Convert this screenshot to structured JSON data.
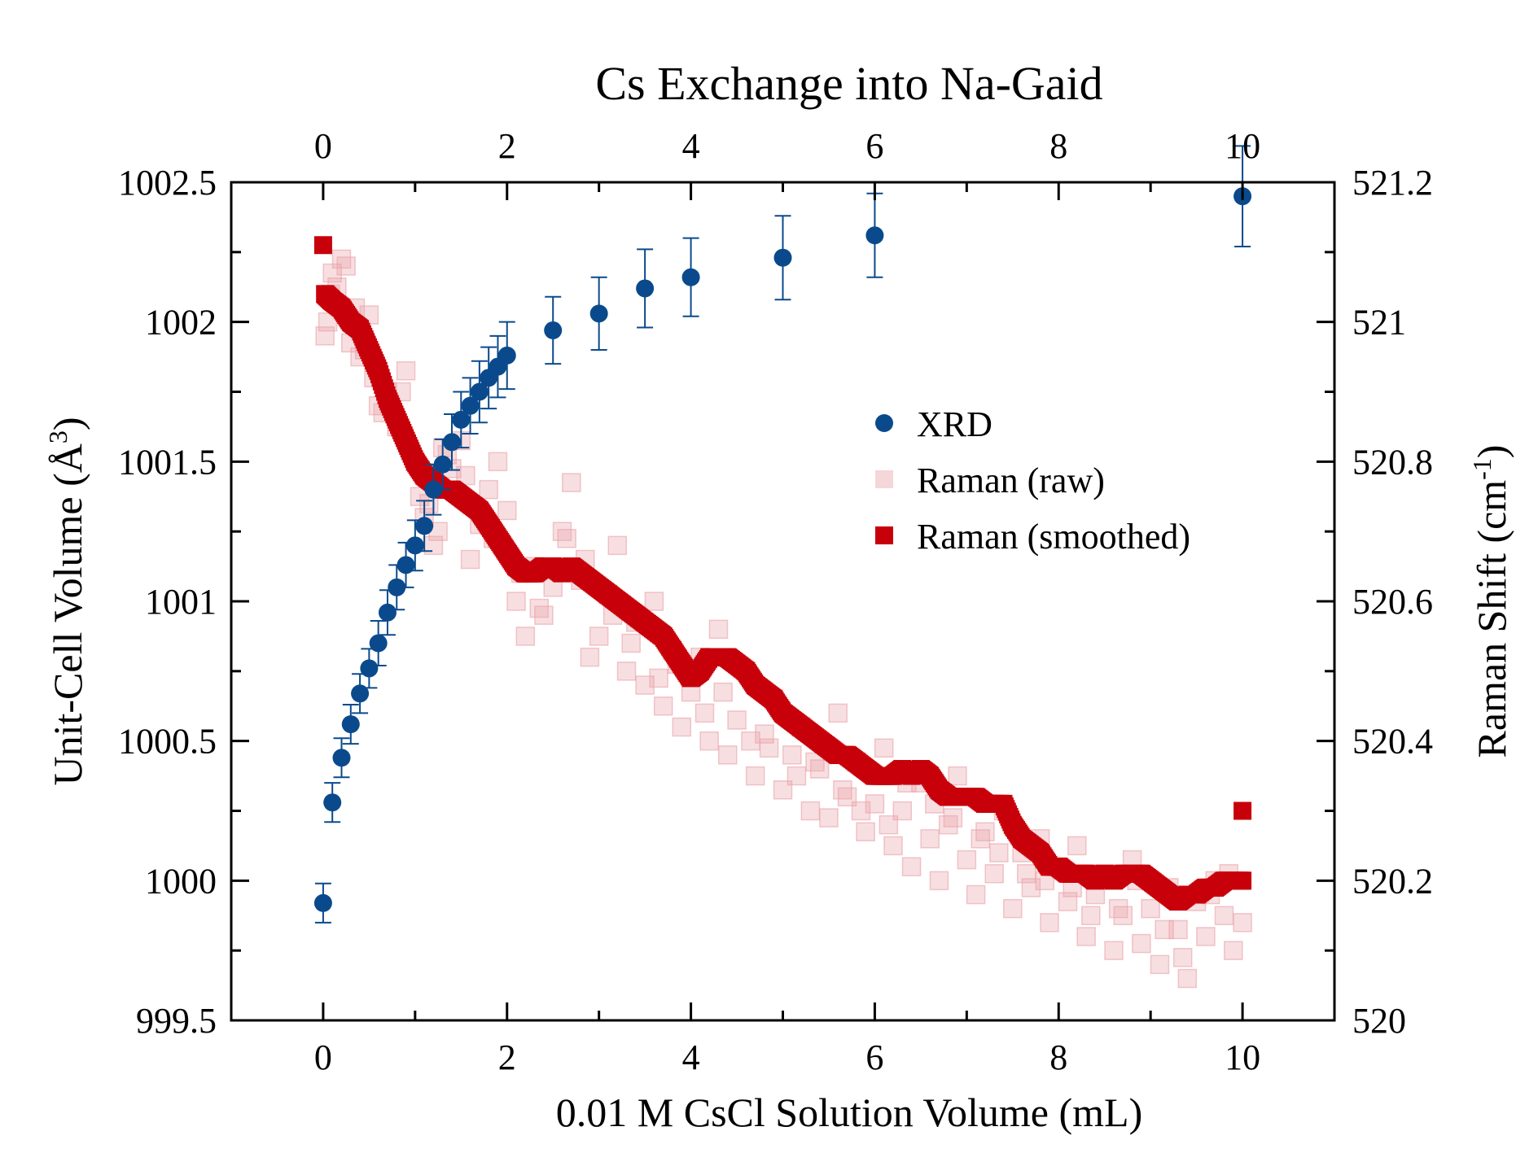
{
  "colors": {
    "xrd": "#0a4a8c",
    "raman_raw": "#e9a3aa",
    "raman_smoothed": "#c8000a"
  },
  "chart_data": {
    "type": "scatter",
    "title": "Cs Exchange into Na-Gaid",
    "xlabel": "0.01 M CsCl Solution Volume (mL)",
    "ylabel_left_text": "Unit-Cell Volume (Å",
    "ylabel_left_sup": "3",
    "ylabel_left_end": ")",
    "ylabel_right_text": "Raman Shift (cm",
    "ylabel_right_sup": "-1",
    "ylabel_right_end": ")",
    "xlim": [
      -1,
      11
    ],
    "ylim_left": [
      999.5,
      1002.5
    ],
    "ylim_right": [
      520,
      521.2
    ],
    "x_ticks": [
      0,
      2,
      4,
      6,
      8,
      10
    ],
    "x_tick_labels": [
      "0",
      "2",
      "4",
      "6",
      "8",
      "10"
    ],
    "x_ticks_top": [
      0,
      2,
      4,
      6,
      8,
      10
    ],
    "x_tick_labels_top": [
      "0",
      "2",
      "4",
      "6",
      "8",
      "10"
    ],
    "y_left_ticks": [
      999.5,
      1000,
      1000.5,
      1001,
      1001.5,
      1002,
      1002.5
    ],
    "y_left_tick_labels": [
      "999.5",
      "1000",
      "1000.5",
      "1001",
      "1001.5",
      "1002",
      "1002.5"
    ],
    "y_right_ticks": [
      520,
      520.2,
      520.4,
      520.6,
      520.8,
      521,
      521.2
    ],
    "y_right_tick_labels": [
      "520",
      "520.2",
      "520.4",
      "520.6",
      "520.8",
      "521",
      "521.2"
    ],
    "legend_position": "center-right",
    "legend": [
      "XRD",
      "Raman (raw)",
      "Raman (smoothed)"
    ],
    "series": [
      {
        "name": "XRD",
        "axis": "left",
        "marker": "circle",
        "x": [
          0,
          0.1,
          0.2,
          0.3,
          0.4,
          0.5,
          0.6,
          0.7,
          0.8,
          0.9,
          1.0,
          1.1,
          1.2,
          1.3,
          1.4,
          1.5,
          1.6,
          1.7,
          1.8,
          1.9,
          2.0,
          2.5,
          3.0,
          3.5,
          4.0,
          5.0,
          6.0,
          10.0
        ],
        "y": [
          999.92,
          1000.28,
          1000.44,
          1000.56,
          1000.67,
          1000.76,
          1000.85,
          1000.96,
          1001.05,
          1001.13,
          1001.2,
          1001.27,
          1001.4,
          1001.49,
          1001.57,
          1001.65,
          1001.7,
          1001.75,
          1001.8,
          1001.84,
          1001.88,
          1001.97,
          1002.03,
          1002.12,
          1002.16,
          1002.23,
          1002.31,
          1002.45
        ],
        "yerr": [
          0.07,
          0.07,
          0.07,
          0.07,
          0.07,
          0.07,
          0.08,
          0.08,
          0.08,
          0.08,
          0.09,
          0.09,
          0.09,
          0.09,
          0.1,
          0.1,
          0.1,
          0.11,
          0.11,
          0.11,
          0.12,
          0.12,
          0.13,
          0.14,
          0.14,
          0.15,
          0.15,
          0.18
        ]
      },
      {
        "name": "Raman (raw)",
        "axis": "right",
        "marker": "square",
        "x": [
          0.02,
          0.05,
          0.08,
          0.1,
          0.15,
          0.2,
          0.25,
          0.3,
          0.4,
          0.5,
          0.55,
          0.6,
          0.7,
          0.8,
          0.9,
          1.0,
          1.05,
          1.1,
          1.2,
          1.25,
          1.3,
          1.4,
          1.5,
          1.6,
          1.7,
          1.8,
          1.9,
          2.0,
          2.1,
          2.2,
          2.3,
          2.4,
          2.5,
          2.6,
          2.7,
          2.8,
          2.9,
          3.0,
          3.1,
          3.2,
          3.3,
          3.4,
          3.5,
          3.6,
          3.7,
          3.8,
          3.9,
          4.0,
          4.1,
          4.2,
          4.3,
          4.4,
          4.5,
          4.6,
          4.7,
          4.8,
          4.9,
          5.0,
          5.1,
          5.2,
          5.3,
          5.4,
          5.5,
          5.6,
          5.7,
          5.8,
          5.9,
          6.0,
          6.1,
          6.2,
          6.3,
          6.4,
          6.5,
          6.6,
          6.7,
          6.8,
          6.9,
          7.0,
          7.1,
          7.2,
          7.3,
          7.4,
          7.5,
          7.6,
          7.7,
          7.8,
          7.9,
          8.0,
          8.1,
          8.2,
          8.3,
          8.4,
          8.5,
          8.6,
          8.7,
          8.8,
          8.9,
          9.0,
          9.1,
          9.2,
          9.3,
          9.4,
          9.5,
          9.6,
          9.7,
          9.8,
          9.9,
          10.0,
          0.35,
          0.65,
          1.15,
          1.55,
          2.15,
          2.65,
          3.15,
          3.65,
          4.15,
          4.65,
          5.15,
          5.65,
          6.15,
          6.65,
          7.15,
          7.65,
          8.15,
          8.65,
          9.15,
          9.65,
          0.45,
          0.85,
          1.35,
          1.85,
          2.35,
          2.85,
          3.35,
          3.85,
          4.35,
          4.85,
          5.35,
          5.85,
          6.35,
          6.85,
          7.35,
          7.85,
          8.35,
          8.85,
          9.35,
          9.85
        ],
        "y": [
          520.98,
          521.0,
          521.04,
          521.07,
          521.05,
          521.09,
          521.08,
          520.97,
          520.95,
          521.01,
          520.92,
          520.88,
          520.9,
          520.85,
          520.93,
          520.8,
          520.75,
          520.72,
          520.68,
          520.7,
          520.82,
          520.79,
          520.83,
          520.66,
          520.71,
          520.76,
          520.8,
          520.73,
          520.6,
          520.55,
          520.65,
          520.58,
          520.62,
          520.7,
          520.77,
          520.63,
          520.52,
          520.55,
          520.61,
          520.68,
          520.5,
          520.57,
          520.48,
          520.6,
          520.45,
          520.53,
          520.42,
          520.47,
          520.52,
          520.4,
          520.56,
          520.38,
          520.43,
          520.5,
          520.35,
          520.41,
          520.46,
          520.33,
          520.38,
          520.42,
          520.3,
          520.36,
          520.29,
          520.44,
          520.32,
          520.37,
          520.27,
          520.31,
          520.39,
          520.25,
          520.3,
          520.22,
          520.34,
          520.26,
          520.2,
          520.28,
          520.35,
          520.23,
          520.18,
          520.27,
          520.21,
          520.3,
          520.16,
          520.24,
          520.19,
          520.26,
          520.14,
          520.22,
          520.17,
          520.25,
          520.12,
          520.18,
          520.21,
          520.1,
          520.15,
          520.23,
          520.11,
          520.16,
          520.08,
          520.19,
          520.13,
          520.06,
          520.17,
          520.12,
          520.2,
          520.15,
          520.1,
          520.14,
          521.02,
          520.87,
          520.74,
          520.78,
          520.64,
          520.69,
          520.58,
          520.49,
          520.44,
          520.4,
          520.35,
          520.33,
          520.28,
          520.31,
          520.26,
          520.21,
          520.19,
          520.16,
          520.13,
          520.18,
          520.96,
          520.9,
          520.81,
          520.69,
          520.59,
          520.66,
          520.54,
          520.51,
          520.47,
          520.39,
          520.37,
          520.3,
          520.34,
          520.29,
          520.24,
          520.2,
          520.15,
          520.2,
          520.09,
          520.21
        ]
      },
      {
        "name": "Raman (smoothed)",
        "axis": "right",
        "marker": "square",
        "x": [
          0.0,
          0.02,
          0.1,
          0.2,
          0.3,
          0.4,
          0.5,
          0.6,
          0.7,
          0.8,
          0.9,
          1.0,
          1.1,
          1.2,
          1.3,
          1.4,
          1.5,
          1.6,
          1.7,
          1.8,
          1.9,
          2.0,
          2.1,
          2.2,
          2.3,
          2.4,
          2.5,
          2.6,
          2.7,
          2.8,
          2.9,
          3.0,
          3.1,
          3.2,
          3.3,
          3.4,
          3.5,
          3.6,
          3.7,
          3.8,
          3.9,
          4.0,
          4.1,
          4.2,
          4.3,
          4.4,
          4.5,
          4.6,
          4.7,
          4.8,
          4.9,
          5.0,
          5.1,
          5.2,
          5.3,
          5.4,
          5.5,
          5.6,
          5.7,
          5.8,
          5.9,
          6.0,
          6.1,
          6.2,
          6.3,
          6.4,
          6.5,
          6.6,
          6.7,
          6.8,
          6.9,
          7.0,
          7.1,
          7.2,
          7.3,
          7.4,
          7.5,
          7.6,
          7.7,
          7.8,
          7.9,
          8.0,
          8.1,
          8.2,
          8.3,
          8.4,
          8.5,
          8.6,
          8.7,
          8.8,
          8.9,
          9.0,
          9.1,
          9.2,
          9.3,
          9.4,
          9.5,
          9.6,
          9.7,
          9.8,
          9.9,
          10.0,
          10.0
        ],
        "y": [
          521.11,
          521.04,
          521.03,
          521.02,
          521.0,
          520.99,
          520.96,
          520.93,
          520.89,
          520.86,
          520.83,
          520.8,
          520.78,
          520.77,
          520.76,
          520.76,
          520.75,
          520.74,
          520.73,
          520.71,
          520.69,
          520.67,
          520.65,
          520.64,
          520.64,
          520.65,
          520.65,
          520.64,
          520.65,
          520.64,
          520.63,
          520.62,
          520.61,
          520.6,
          520.59,
          520.58,
          520.57,
          520.56,
          520.55,
          520.53,
          520.51,
          520.49,
          520.5,
          520.52,
          520.52,
          520.52,
          520.51,
          520.5,
          520.48,
          520.47,
          520.46,
          520.44,
          520.43,
          520.42,
          520.41,
          520.4,
          520.39,
          520.38,
          520.38,
          520.37,
          520.36,
          520.35,
          520.35,
          520.35,
          520.36,
          520.35,
          520.36,
          520.35,
          520.33,
          520.32,
          520.32,
          520.32,
          520.32,
          520.31,
          520.31,
          520.31,
          520.28,
          520.26,
          520.25,
          520.24,
          520.22,
          520.22,
          520.21,
          520.21,
          520.21,
          520.2,
          520.21,
          520.2,
          520.21,
          520.21,
          520.21,
          520.2,
          520.19,
          520.18,
          520.17,
          520.18,
          520.18,
          520.19,
          520.19,
          520.2,
          520.2,
          520.2,
          520.3
        ]
      }
    ]
  }
}
